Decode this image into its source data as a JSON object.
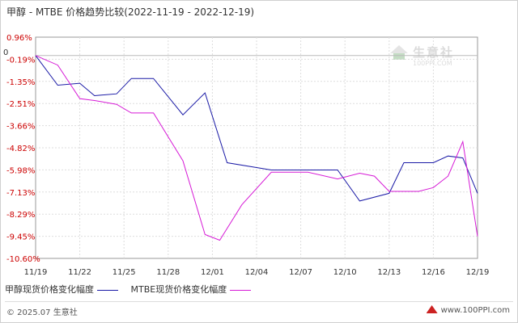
{
  "header": {
    "title": "甲醇 - MTBE 价格趋势比较(2022-11-19 - 2022-12-19)"
  },
  "chart_data": {
    "type": "line",
    "title": "甲醇 - MTBE 价格趋势比较(2022-11-19 - 2022-12-19)",
    "y_ticks": [
      "0.96%",
      "-0.19%",
      "-1.35%",
      "-2.51%",
      "-3.66%",
      "-4.82%",
      "-5.98%",
      "-7.13%",
      "-8.29%",
      "-9.45%",
      "-10.60%"
    ],
    "y_zero_marker": "0",
    "ylim": [
      -10.6,
      0.96
    ],
    "x_ticks": [
      "11/19",
      "11/22",
      "11/25",
      "11/28",
      "12/01",
      "12/04",
      "12/07",
      "12/10",
      "12/13",
      "12/16",
      "12/19"
    ],
    "x_day_range": [
      0,
      30
    ],
    "grid": true,
    "legend_position": "bottom",
    "series": [
      {
        "name": "甲醇现货价格变化幅度",
        "color": "#1a1aa6",
        "x": [
          0,
          1.5,
          3,
          4,
          5.5,
          6.5,
          8,
          10,
          11.5,
          13,
          16,
          18.5,
          20.5,
          22,
          24,
          25,
          26,
          27,
          28,
          29,
          30
        ],
        "y": [
          0,
          -1.55,
          -1.45,
          -2.1,
          -2.0,
          -1.2,
          -1.2,
          -3.1,
          -1.95,
          -5.6,
          -5.98,
          -5.98,
          -5.98,
          -7.6,
          -7.2,
          -5.6,
          -5.6,
          -5.6,
          -5.25,
          -5.35,
          -7.2
        ]
      },
      {
        "name": "MTBE现货价格变化幅度",
        "color": "#d61ad6",
        "x": [
          0,
          1.5,
          3,
          4,
          5.5,
          6.5,
          8,
          10,
          11.5,
          12.5,
          14,
          16,
          18.5,
          20.5,
          22,
          23,
          24,
          25,
          26,
          27,
          28,
          29,
          30
        ],
        "y": [
          0,
          -0.5,
          -2.25,
          -2.35,
          -2.55,
          -3.0,
          -3.0,
          -5.5,
          -9.35,
          -9.65,
          -7.8,
          -6.1,
          -6.1,
          -6.45,
          -6.15,
          -6.3,
          -7.1,
          -7.1,
          -7.1,
          -6.9,
          -6.3,
          -4.5,
          -9.45
        ]
      }
    ]
  },
  "legend": {
    "items": [
      {
        "label": "甲醇现货价格变化幅度",
        "color": "#1a1aa6"
      },
      {
        "label": "MTBE现货价格变化幅度",
        "color": "#d61ad6"
      }
    ]
  },
  "footer": {
    "copyright": "© 2025.07 生意社",
    "site": "www.100PPI.com"
  },
  "watermark": {
    "name": "生意社",
    "url": "100PPI.COM"
  }
}
